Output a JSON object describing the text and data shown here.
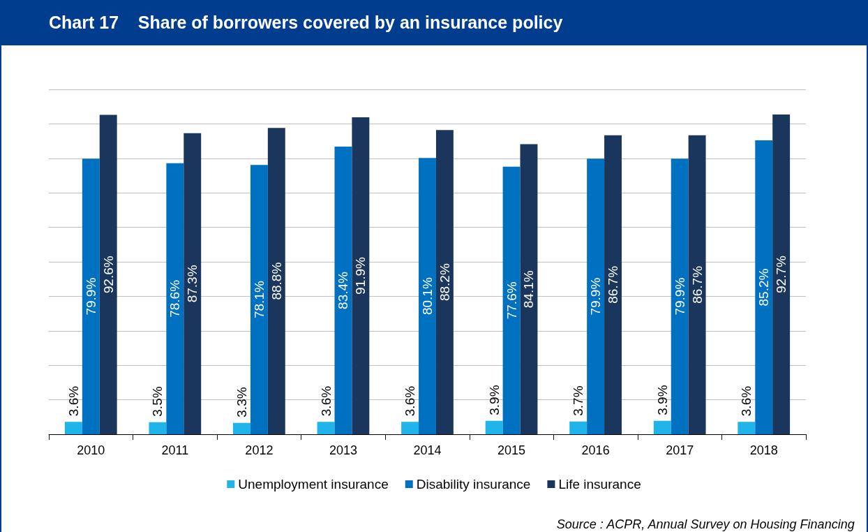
{
  "chart_data": {
    "type": "bar",
    "title": "Chart 17    Share of borrowers covered by an insurance policy",
    "categories": [
      "2010",
      "2011",
      "2012",
      "2013",
      "2014",
      "2015",
      "2016",
      "2017",
      "2018"
    ],
    "series": [
      {
        "name": "Unemployment insurance",
        "color": "#1fb4ea",
        "values": [
          3.6,
          3.5,
          3.3,
          3.6,
          3.6,
          3.9,
          3.7,
          3.9,
          3.6
        ],
        "value_labels": [
          "3.6%",
          "3.5%",
          "3.3%",
          "3.6%",
          "3.6%",
          "3.9%",
          "3.7%",
          "3.9%",
          "3.6%"
        ]
      },
      {
        "name": "Disability insurance",
        "color": "#0070c0",
        "values": [
          79.9,
          78.6,
          78.1,
          83.4,
          80.1,
          77.6,
          79.9,
          79.9,
          85.2
        ],
        "value_labels": [
          "79.9%",
          "78.6%",
          "78.1%",
          "83.4%",
          "80.1%",
          "77.6%",
          "79.9%",
          "79.9%",
          "85.2%"
        ]
      },
      {
        "name": "Life insurance",
        "color": "#1b365d",
        "values": [
          92.6,
          87.3,
          88.8,
          91.9,
          88.2,
          84.1,
          86.7,
          86.7,
          92.7
        ],
        "value_labels": [
          "92.6%",
          "87.3%",
          "88.8%",
          "91.9%",
          "88.2%",
          "84.1%",
          "86.7%",
          "86.7%",
          "92.7%"
        ]
      }
    ],
    "tick_labels": "x",
    "grid": "y",
    "legend": "bottom",
    "annotations": [
      "Source : ACPR, Annual Survey on Housing Financing"
    ]
  }
}
